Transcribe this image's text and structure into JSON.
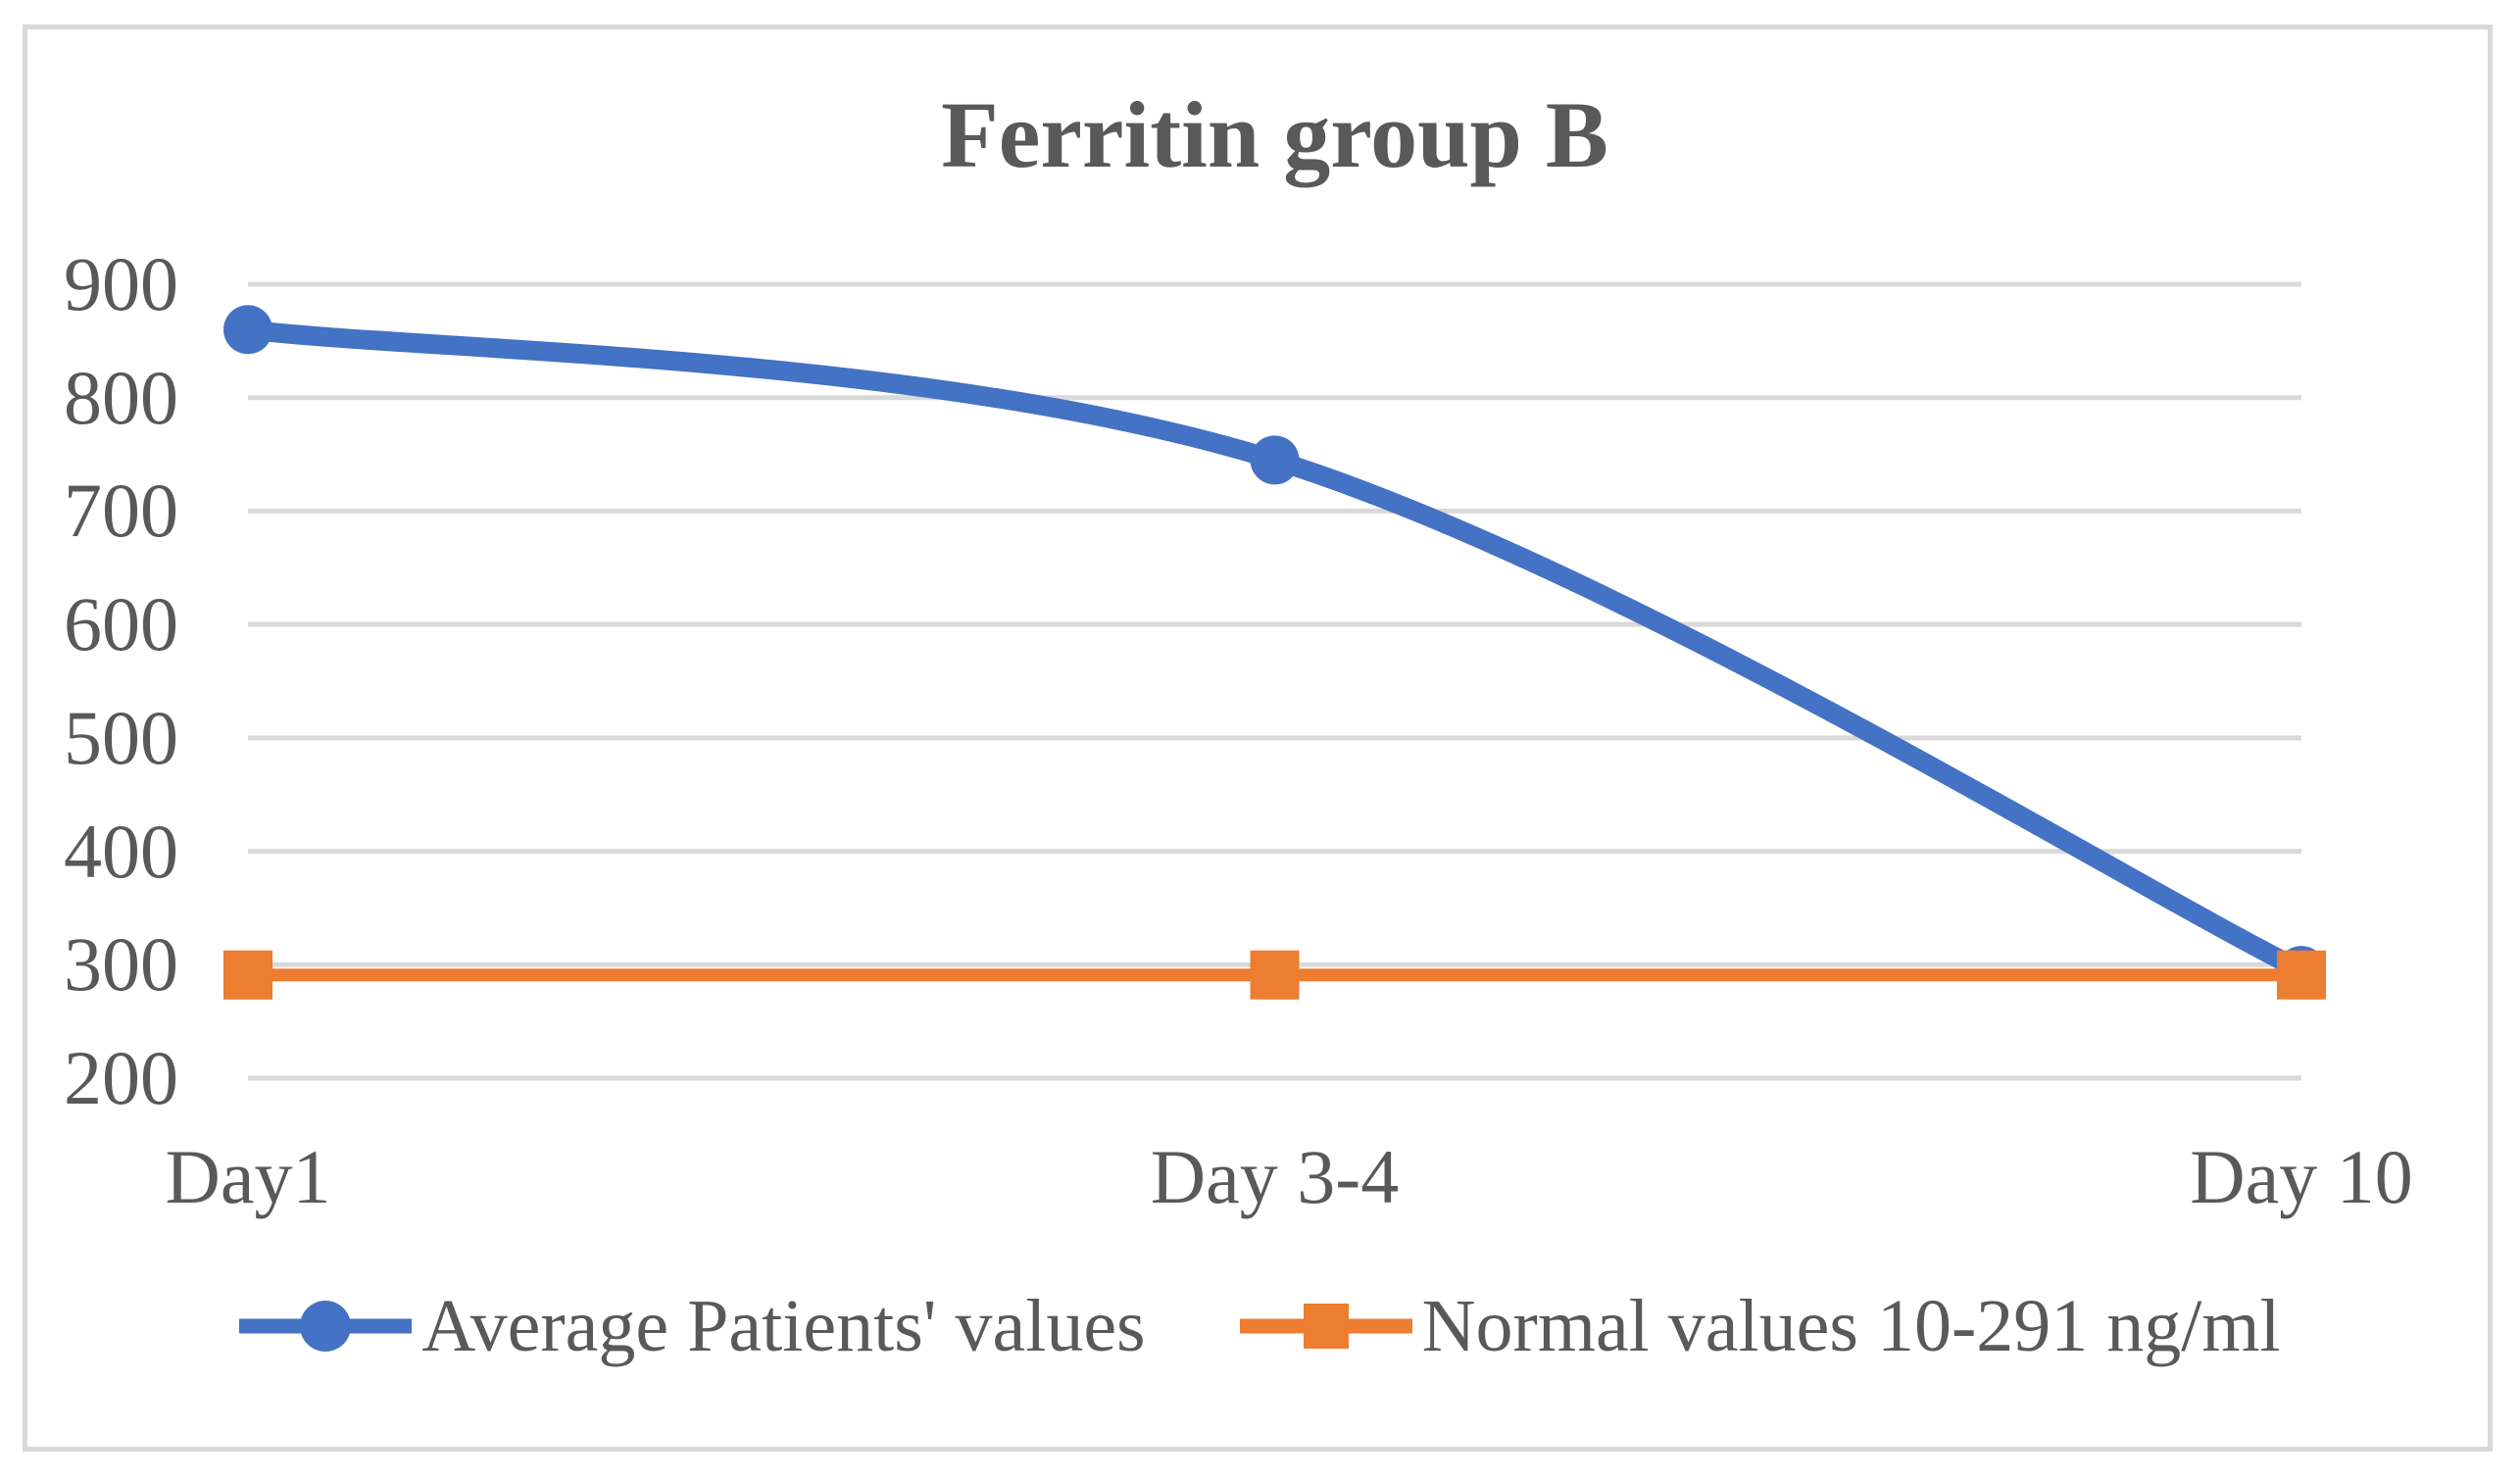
{
  "chart_data": {
    "type": "line",
    "title": "Ferritin group B",
    "categories": [
      "Day1",
      "Day 3-4",
      "Day 10"
    ],
    "series": [
      {
        "name": "Average Patients' values",
        "values": [
          860,
          745,
          295
        ],
        "color": "#4472C4",
        "marker": "circle",
        "smooth": true
      },
      {
        "name": "Normal values 10-291 ng/ml",
        "values": [
          291,
          291,
          291
        ],
        "color": "#ED7D31",
        "marker": "square",
        "smooth": false
      }
    ],
    "ylim": [
      200,
      900
    ],
    "yticks": [
      900,
      800,
      700,
      600,
      500,
      400,
      300,
      200
    ],
    "xlabel": "",
    "ylabel": "",
    "grid": "horizontal",
    "gridline_color": "#D9D9D9",
    "axis_text_color": "#595959",
    "title_color": "#595959",
    "frame_border_color": "#D9D9D9",
    "background": "#FFFFFF",
    "legend_position": "bottom"
  }
}
